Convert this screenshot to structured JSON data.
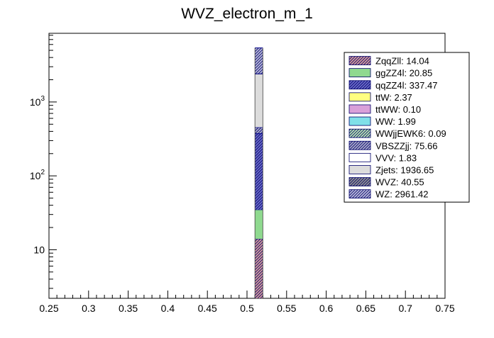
{
  "chart_data": {
    "type": "bar",
    "title": "WVZ_electron_m_1",
    "xlabel": "",
    "ylabel": "",
    "x_scale": "linear",
    "y_scale": "log",
    "xlim": [
      0.25,
      0.75
    ],
    "ylim": [
      2.2,
      8500
    ],
    "stacked": true,
    "grid": false,
    "legend_position": "top-right",
    "bin": [
      0.51,
      0.52
    ],
    "x_ticks": [
      "0.25",
      "0.3",
      "0.35",
      "0.4",
      "0.45",
      "0.5",
      "0.55",
      "0.6",
      "0.65",
      "0.7",
      "0.75"
    ],
    "y_ticks": [
      {
        "value": 10,
        "label": "10"
      },
      {
        "value": 100,
        "label": "10^2"
      },
      {
        "value": 1000,
        "label": "10^3"
      }
    ],
    "series": [
      {
        "name": "ZqqZll",
        "value": 14.04,
        "label": "ZqqZll: 14.04",
        "color": "#d49a9a",
        "hatch": true
      },
      {
        "name": "ggZZ4l",
        "value": 20.85,
        "label": "ggZZ4l: 20.85",
        "color": "#8fd98f",
        "hatch": false
      },
      {
        "name": "qqZZ4l",
        "value": 337.47,
        "label": "qqZZ4l: 337.47",
        "color": "#6a6ac8",
        "hatch": true
      },
      {
        "name": "ttW",
        "value": 2.37,
        "label": "ttW: 2.37",
        "color": "#ffff80",
        "hatch": false
      },
      {
        "name": "ttWW",
        "value": 0.1,
        "label": "ttWW: 0.10",
        "color": "#d9a0d9",
        "hatch": false
      },
      {
        "name": "WW",
        "value": 1.99,
        "label": "WW: 1.99",
        "color": "#80e0e8",
        "hatch": false
      },
      {
        "name": "WWjjEWK6",
        "value": 0.09,
        "label": "WWjjEWK6: 0.09",
        "color": "#b8e6b0",
        "hatch": true
      },
      {
        "name": "VBSZZjj",
        "value": 75.66,
        "label": "VBSZZjj: 75.66",
        "color": "#a8a8c8",
        "hatch": true
      },
      {
        "name": "VVV",
        "value": 1.83,
        "label": "VVV: 1.83",
        "color": "#ffffff",
        "hatch": false
      },
      {
        "name": "Zjets",
        "value": 1936.65,
        "label": "Zjets: 1936.65",
        "color": "#dcdcdc",
        "hatch": false
      },
      {
        "name": "WVZ",
        "value": 40.55,
        "label": "WVZ: 40.55",
        "color": "#909090",
        "hatch": true
      },
      {
        "name": "WZ",
        "value": 2961.42,
        "label": "WZ: 2961.42",
        "color": "#b8b8d8",
        "hatch": true
      }
    ]
  }
}
